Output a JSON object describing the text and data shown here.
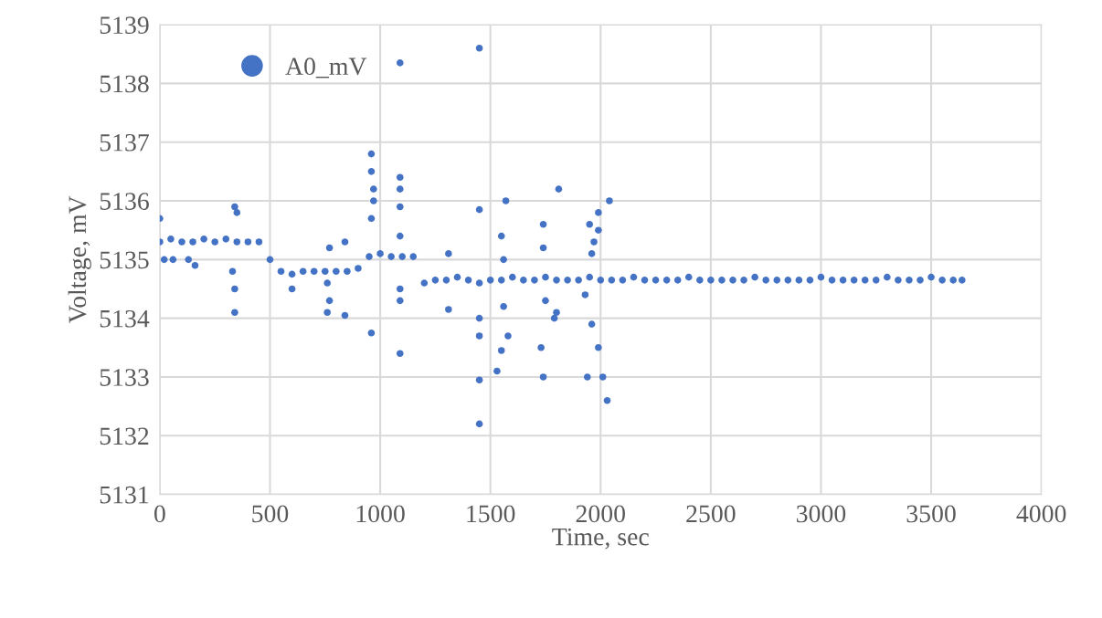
{
  "chart_data": {
    "type": "scatter",
    "xlabel": "Time, sec",
    "ylabel": "Voltage, mV",
    "xlim": [
      0,
      4000
    ],
    "xticks": [
      0,
      500,
      1000,
      1500,
      2000,
      2500,
      3000,
      3500,
      4000
    ],
    "ylim": [
      5131,
      5139
    ],
    "yticks": [
      5131,
      5132,
      5133,
      5134,
      5135,
      5136,
      5137,
      5138,
      5139
    ],
    "grid": true,
    "legend": "top left",
    "marker": "circle",
    "series": [
      {
        "name": "A0_mV",
        "color": "#4472c4",
        "x": [
          0,
          50,
          100,
          150,
          200,
          250,
          300,
          350,
          400,
          450,
          500,
          550,
          600,
          650,
          700,
          750,
          800,
          850,
          900,
          950,
          1000,
          1050,
          1100,
          1150,
          1200,
          1250,
          1300,
          1350,
          1400,
          1450,
          1500,
          1550,
          1600,
          1650,
          1700,
          1750,
          1800,
          1850,
          1900,
          1950,
          2000,
          2050,
          2100,
          2150,
          2200,
          2250,
          2300,
          2350,
          2400,
          2450,
          2500,
          2550,
          2600,
          2650,
          2700,
          2750,
          2800,
          2850,
          2900,
          2950,
          3000,
          3050,
          3100,
          3150,
          3200,
          3250,
          3300,
          3350,
          3400,
          3450,
          3500,
          3550,
          3600,
          3640,
          0,
          20,
          60,
          130,
          160,
          340,
          350,
          340,
          340,
          330,
          600,
          760,
          770,
          760,
          770,
          840,
          840,
          960,
          960,
          970,
          970,
          960,
          960,
          1090,
          1090,
          1090,
          1090,
          1090,
          1090,
          1090,
          1090,
          1310,
          1310,
          1450,
          1450,
          1450,
          1450,
          1450,
          1450,
          1570,
          1550,
          1560,
          1550,
          1530,
          1580,
          1560,
          1810,
          1740,
          1740,
          1750,
          1730,
          1740,
          1790,
          1800,
          1950,
          1990,
          1990,
          1960,
          1930,
          1960,
          1990,
          1940,
          2010,
          2030,
          2040,
          1970
        ],
        "values": [
          5135.3,
          5135.35,
          5135.3,
          5135.3,
          5135.35,
          5135.3,
          5135.35,
          5135.3,
          5135.3,
          5135.3,
          5135.0,
          5134.8,
          5134.75,
          5134.8,
          5134.8,
          5134.8,
          5134.8,
          5134.8,
          5134.85,
          5135.05,
          5135.1,
          5135.05,
          5135.05,
          5135.05,
          5134.6,
          5134.65,
          5134.65,
          5134.7,
          5134.65,
          5134.6,
          5134.65,
          5134.65,
          5134.7,
          5134.65,
          5134.65,
          5134.7,
          5134.65,
          5134.65,
          5134.65,
          5134.7,
          5134.65,
          5134.65,
          5134.65,
          5134.7,
          5134.65,
          5134.65,
          5134.65,
          5134.65,
          5134.7,
          5134.65,
          5134.65,
          5134.65,
          5134.65,
          5134.65,
          5134.7,
          5134.65,
          5134.65,
          5134.65,
          5134.65,
          5134.65,
          5134.7,
          5134.65,
          5134.65,
          5134.65,
          5134.65,
          5134.65,
          5134.7,
          5134.65,
          5134.65,
          5134.65,
          5134.7,
          5134.65,
          5134.65,
          5134.65,
          5135.7,
          5135.0,
          5135.0,
          5135.0,
          5134.9,
          5135.9,
          5135.8,
          5134.5,
          5134.1,
          5134.8,
          5134.5,
          5134.1,
          5134.3,
          5134.6,
          5135.2,
          5135.3,
          5134.05,
          5136.8,
          5136.5,
          5136.2,
          5136.0,
          5135.7,
          5133.75,
          5138.35,
          5136.4,
          5136.2,
          5135.9,
          5135.4,
          5134.5,
          5134.3,
          5133.4,
          5135.1,
          5134.15,
          5138.6,
          5135.85,
          5134.0,
          5133.7,
          5132.95,
          5132.2,
          5136.0,
          5135.4,
          5135.0,
          5133.45,
          5133.1,
          5133.7,
          5134.2,
          5136.2,
          5135.6,
          5135.2,
          5134.3,
          5133.5,
          5133.0,
          5134.0,
          5134.1,
          5135.6,
          5135.8,
          5135.5,
          5135.1,
          5134.4,
          5133.9,
          5133.5,
          5133.0,
          5133.0,
          5132.6,
          5136.0,
          5135.3
        ]
      }
    ]
  }
}
